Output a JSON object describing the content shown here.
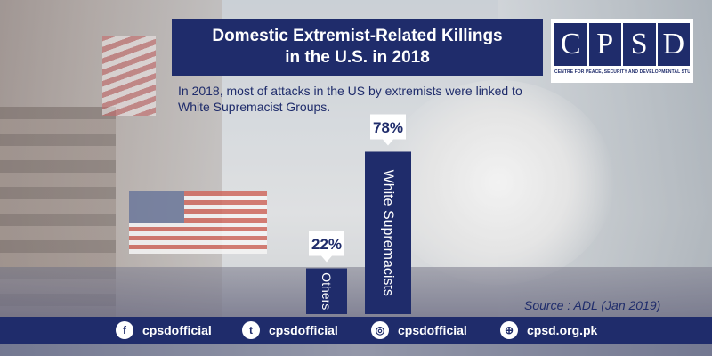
{
  "title": "Domestic Extremist-Related Killings\nin the U.S. in 2018",
  "subtitle": "In 2018, most of attacks in the US by extremists were linked to White Supremacist Groups.",
  "logo": {
    "letters": [
      "C",
      "P",
      "S",
      "D"
    ],
    "tagline": "CENTRE FOR PEACE, SECURITY AND DEVELOPMENTAL STUDIES"
  },
  "source": "Source : ADL (Jan 2019)",
  "social": [
    {
      "icon": "facebook-icon",
      "glyph": "f",
      "label": "cpsdofficial"
    },
    {
      "icon": "twitter-icon",
      "glyph": "t",
      "label": "cpsdofficial"
    },
    {
      "icon": "instagram-icon",
      "glyph": "◎",
      "label": "cpsdofficial"
    },
    {
      "icon": "globe-icon",
      "glyph": "⊕",
      "label": "cpsd.org.pk"
    }
  ],
  "colors": {
    "navy": "#1f2c6b",
    "white": "#ffffff"
  },
  "chart_data": {
    "type": "bar",
    "categories": [
      "Others",
      "White Supremacists"
    ],
    "values": [
      22,
      78
    ],
    "value_labels": [
      "22%",
      "78%"
    ],
    "title": "Domestic Extremist-Related Killings\nin the U.S. in 2018",
    "xlabel": "",
    "ylabel": "",
    "ylim": [
      0,
      100
    ],
    "grid": false
  }
}
